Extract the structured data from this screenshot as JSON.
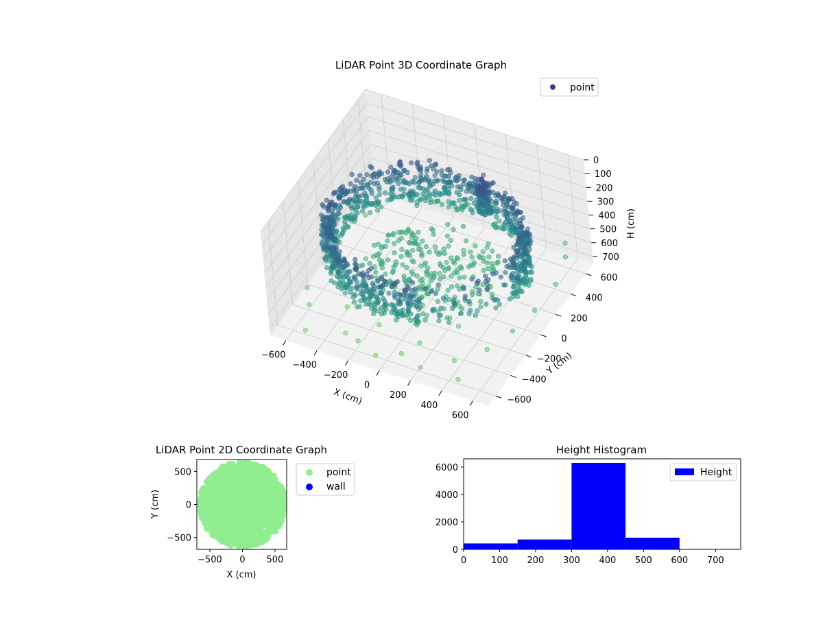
{
  "chart_data": [
    {
      "type": "scatter3d",
      "title": "LiDAR Point 3D Coordinate Graph",
      "xlabel": "X (cm)",
      "ylabel": "Y (cm)",
      "zlabel": "H (cm)",
      "xlim": [
        -700,
        700
      ],
      "ylim": [
        -700,
        700
      ],
      "zlim": [
        0,
        750
      ],
      "z_inverted": true,
      "grid": true,
      "legend": {
        "position": "top-right",
        "entries": [
          "point"
        ]
      },
      "xticks": [
        "−600",
        "−400",
        "−200",
        "0",
        "200",
        "400",
        "600"
      ],
      "yticks": [
        "−600",
        "−400",
        "−200",
        "0",
        "200",
        "400",
        "600"
      ],
      "zticks": [
        "0",
        "100",
        "200",
        "300",
        "400",
        "500",
        "600",
        "700"
      ],
      "colormap": "viridis (by height)",
      "series": [
        {
          "name": "point",
          "color": "#3b3c8b",
          "structure": "ring wall of lidar returns plus scattered floor points",
          "ring_wall": {
            "radius_x": 620,
            "radius_y": 560,
            "height_range": [
              200,
              500
            ],
            "opening_angle_deg": [
              -70,
              -10
            ]
          },
          "dense_cluster": {
            "x": 170,
            "y": 420,
            "height_range": [
              150,
              380
            ]
          },
          "floor_points": [
            [
              -660,
              -280,
              700
            ],
            [
              -580,
              -420,
              690
            ],
            [
              -520,
              -600,
              720
            ],
            [
              -420,
              -120,
              650
            ],
            [
              -380,
              -330,
              700
            ],
            [
              -300,
              -520,
              720
            ],
            [
              -250,
              -250,
              680
            ],
            [
              -200,
              -560,
              710
            ],
            [
              -140,
              -400,
              690
            ],
            [
              -60,
              -620,
              720
            ],
            [
              0,
              -300,
              660
            ],
            [
              80,
              -560,
              700
            ],
            [
              140,
              -440,
              690
            ],
            [
              220,
              -600,
              720
            ],
            [
              300,
              -250,
              650
            ],
            [
              380,
              -480,
              700
            ],
            [
              460,
              -600,
              720
            ],
            [
              520,
              -330,
              680
            ],
            [
              600,
              -150,
              650
            ],
            [
              640,
              60,
              640
            ],
            [
              660,
              300,
              620
            ],
            [
              620,
              520,
              600
            ],
            [
              560,
              640,
              610
            ],
            [
              -640,
              120,
              660
            ],
            [
              -600,
              380,
              640
            ],
            [
              -100,
              -150,
              640
            ],
            [
              250,
              -120,
              620
            ],
            [
              -300,
              0,
              600
            ]
          ]
        }
      ]
    },
    {
      "type": "scatter",
      "title": "LiDAR Point 2D Coordinate Graph",
      "xlabel": "X (cm)",
      "ylabel": "Y (cm)",
      "xlim": [
        -700,
        680
      ],
      "ylim": [
        -680,
        680
      ],
      "xticks": [
        "−500",
        "0",
        "500"
      ],
      "yticks": [
        "−500",
        "0",
        "500"
      ],
      "legend": {
        "position": "outside-right",
        "entries": [
          "point",
          "wall"
        ]
      },
      "series": [
        {
          "name": "point",
          "color": "#90ee90",
          "description": "dense cloud filling disc of radius ~650"
        },
        {
          "name": "wall",
          "color": "#0000ff",
          "values": []
        }
      ]
    },
    {
      "type": "bar",
      "title": "Height Histogram",
      "xlabel": "",
      "ylabel": "",
      "xlim": [
        0,
        770
      ],
      "ylim": [
        0,
        6600
      ],
      "xticks": [
        "0",
        "100",
        "200",
        "300",
        "400",
        "500",
        "600",
        "700"
      ],
      "yticks": [
        "0",
        "2000",
        "4000",
        "6000"
      ],
      "legend": {
        "position": "top-right",
        "entries": [
          "Height"
        ]
      },
      "color": "#0000ff",
      "series": [
        {
          "name": "Height",
          "bins": [
            [
              0,
              150
            ],
            [
              150,
              300
            ],
            [
              300,
              450
            ],
            [
              450,
              600
            ],
            [
              600,
              750
            ]
          ],
          "values": [
            430,
            720,
            6300,
            850,
            0
          ]
        }
      ]
    }
  ]
}
